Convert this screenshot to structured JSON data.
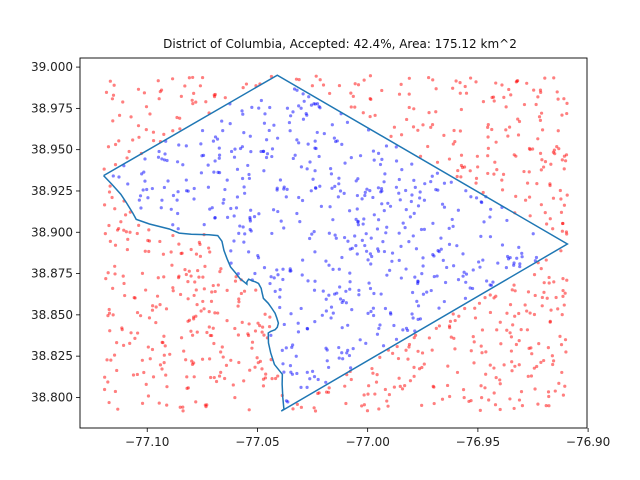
{
  "chart_data": {
    "type": "scatter",
    "title": "District of Columbia, Accepted: 42.4%, Area: 175.12 km^2",
    "xlabel": "",
    "ylabel": "",
    "xlim": [
      -77.1305,
      -76.9005
    ],
    "ylim": [
      38.7815,
      39.0055
    ],
    "grid": false,
    "x_ticks": [
      -77.1,
      -77.05,
      -77.0,
      -76.95,
      -76.9
    ],
    "x_tick_labels": [
      "−77.10",
      "−77.05",
      "−77.00",
      "−76.95",
      "−76.90"
    ],
    "y_ticks": [
      38.8,
      38.825,
      38.85,
      38.875,
      38.9,
      38.925,
      38.95,
      38.975,
      39.0
    ],
    "y_tick_labels": [
      "38.800",
      "38.825",
      "38.850",
      "38.875",
      "38.900",
      "38.925",
      "38.950",
      "38.975",
      "39.000"
    ],
    "sample_bounds": {
      "x": [
        -77.1198,
        -76.9094
      ],
      "y": [
        38.7917,
        38.9951
      ]
    },
    "accepted_fraction": 0.424,
    "sample_count": 1200,
    "boundary": [
      [
        -77.1198,
        38.9343
      ],
      [
        -77.041,
        38.9951
      ],
      [
        -76.9094,
        38.8929
      ],
      [
        -77.0392,
        38.7917
      ],
      [
        -77.038,
        38.793
      ],
      [
        -77.0385,
        38.8
      ],
      [
        -77.0388,
        38.808
      ],
      [
        -77.0387,
        38.814
      ],
      [
        -77.0423,
        38.82
      ],
      [
        -77.044,
        38.827
      ],
      [
        -77.045,
        38.833
      ],
      [
        -77.0451,
        38.839
      ],
      [
        -77.044,
        38.84
      ],
      [
        -77.042,
        38.841
      ],
      [
        -77.041,
        38.8425
      ],
      [
        -77.0405,
        38.845
      ],
      [
        -77.0412,
        38.848
      ],
      [
        -77.042,
        38.851
      ],
      [
        -77.0435,
        38.854
      ],
      [
        -77.0451,
        38.857
      ],
      [
        -77.0473,
        38.86
      ],
      [
        -77.048,
        38.864
      ],
      [
        -77.0483,
        38.866
      ],
      [
        -77.0495,
        38.869
      ],
      [
        -77.051,
        38.87
      ],
      [
        -77.0522,
        38.8705
      ],
      [
        -77.053,
        38.871
      ],
      [
        -77.054,
        38.8716
      ],
      [
        -77.0548,
        38.87
      ],
      [
        -77.0548,
        38.8686
      ],
      [
        -77.0561,
        38.87
      ],
      [
        -77.058,
        38.872
      ],
      [
        -77.06,
        38.8755
      ],
      [
        -77.0622,
        38.879
      ],
      [
        -77.0638,
        38.884
      ],
      [
        -77.0652,
        38.889
      ],
      [
        -77.0661,
        38.8945
      ],
      [
        -77.068,
        38.898
      ],
      [
        -77.072,
        38.8985
      ],
      [
        -77.08,
        38.8988
      ],
      [
        -77.0855,
        38.8995
      ],
      [
        -77.09,
        38.902
      ],
      [
        -77.099,
        38.905
      ],
      [
        -77.105,
        38.9078
      ],
      [
        -77.1065,
        38.9115
      ],
      [
        -77.1095,
        38.918
      ],
      [
        -77.112,
        38.923
      ],
      [
        -77.116,
        38.929
      ],
      [
        -77.1198,
        38.9343
      ]
    ],
    "colors": {
      "boundary": "#1f77b4",
      "accepted": "#0000ff",
      "rejected": "#ff0000"
    },
    "point_alpha": 0.5
  }
}
